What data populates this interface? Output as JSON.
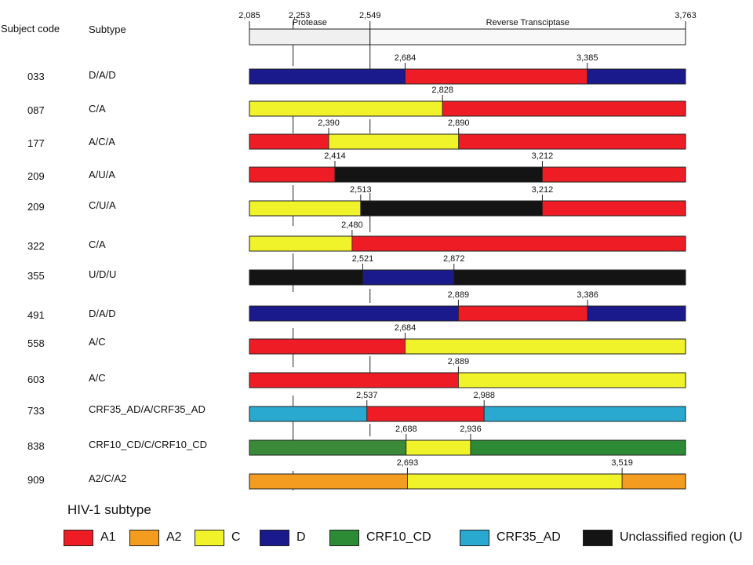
{
  "header": {
    "subject_code_label": "Subject code",
    "subtype_label": "Subtype"
  },
  "genome": {
    "start": 2085,
    "end": 3763,
    "boundary": 2549,
    "ticks": [
      "2,085",
      "2,253",
      "2,549",
      "3,763"
    ],
    "tick_positions": [
      2085,
      2253,
      2549,
      3763
    ],
    "regions": [
      {
        "label": "Protease",
        "from": 2085,
        "to": 2549,
        "color": "#f0f0f0"
      },
      {
        "label": "Reverse Transciptase",
        "from": 2549,
        "to": 3763,
        "color": "#f8f8f8"
      }
    ]
  },
  "colors": {
    "A1": "#ee1c25",
    "A2": "#f39c1f",
    "C": "#f0f22a",
    "D": "#1a1a8c",
    "CRF10_CD": "#2e8b35",
    "CRF10_CD_dark": "#3a8a3a",
    "CRF35_AD": "#29a8d0",
    "U": "#141414"
  },
  "subjects": [
    {
      "code": "033",
      "subtype": "D/A/D",
      "breaks": [
        2684,
        3385
      ],
      "labels": [
        "2,684",
        "3,385"
      ],
      "segments": [
        "D",
        "A1",
        "D"
      ]
    },
    {
      "code": "087",
      "subtype": "C/A",
      "breaks": [
        2828
      ],
      "labels": [
        "2,828"
      ],
      "segments": [
        "C",
        "A1"
      ]
    },
    {
      "code": "177",
      "subtype": "A/C/A",
      "breaks": [
        2390,
        2890
      ],
      "labels": [
        "2,390",
        "2,890"
      ],
      "segments": [
        "A1",
        "C",
        "A1"
      ]
    },
    {
      "code": "209",
      "subtype": "A/U/A",
      "breaks": [
        2414,
        3212
      ],
      "labels": [
        "2,414",
        "3,212"
      ],
      "segments": [
        "A1",
        "U",
        "A1"
      ]
    },
    {
      "code": "209",
      "subtype": "C/U/A",
      "breaks": [
        2513,
        3212
      ],
      "labels": [
        "2,513",
        "3,212"
      ],
      "segments": [
        "C",
        "U",
        "A1"
      ]
    },
    {
      "code": "322",
      "subtype": "C/A",
      "breaks": [
        2480
      ],
      "labels": [
        "2,480"
      ],
      "segments": [
        "C",
        "A1"
      ]
    },
    {
      "code": "355",
      "subtype": "U/D/U",
      "breaks": [
        2521,
        2872
      ],
      "labels": [
        "2,521",
        "2,872"
      ],
      "segments": [
        "U",
        "D",
        "U"
      ]
    },
    {
      "code": "491",
      "subtype": "D/A/D",
      "breaks": [
        2889,
        3386
      ],
      "labels": [
        "2,889",
        "3,386"
      ],
      "segments": [
        "D",
        "A1",
        "D"
      ]
    },
    {
      "code": "558",
      "subtype": "A/C",
      "breaks": [
        2684
      ],
      "labels": [
        "2,684"
      ],
      "segments": [
        "A1",
        "C"
      ]
    },
    {
      "code": "603",
      "subtype": "A/C",
      "breaks": [
        2889
      ],
      "labels": [
        "2,889"
      ],
      "segments": [
        "A1",
        "C"
      ]
    },
    {
      "code": "733",
      "subtype": "CRF35_AD/A/CRF35_AD",
      "breaks": [
        2537,
        2988
      ],
      "labels": [
        "2,537",
        "2,988"
      ],
      "segments": [
        "CRF35_AD",
        "A1",
        "CRF35_AD"
      ]
    },
    {
      "code": "838",
      "subtype": "CRF10_CD/C/CRF10_CD",
      "breaks": [
        2688,
        2936
      ],
      "labels": [
        "2,688",
        "2,936"
      ],
      "segments": [
        "CRF10_CD_dark",
        "C",
        "CRF10_CD"
      ]
    },
    {
      "code": "909",
      "subtype": "A2/C/A2",
      "breaks": [
        2693,
        3519
      ],
      "labels": [
        "2,693",
        "3,519"
      ],
      "segments": [
        "A2",
        "C",
        "A2"
      ]
    }
  ],
  "legend": {
    "title": "HIV-1 subtype",
    "items": [
      {
        "key": "A1",
        "label": "A1"
      },
      {
        "key": "A2",
        "label": "A2"
      },
      {
        "key": "C",
        "label": "C"
      },
      {
        "key": "D",
        "label": "D"
      },
      {
        "key": "CRF10_CD",
        "label": "CRF10_CD"
      },
      {
        "key": "CRF35_AD",
        "label": "CRF35_AD"
      },
      {
        "key": "U",
        "label": "Unclassified region (U"
      }
    ]
  }
}
